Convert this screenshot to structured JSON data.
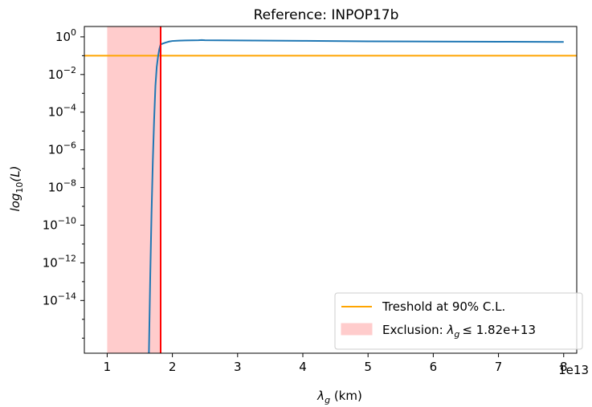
{
  "chart_data": {
    "type": "line",
    "title": "Reference: INPOP17b",
    "xlabel_symbol": "λ",
    "xlabel_sub": "g",
    "xlabel_unit": " (km)",
    "ylabel_prefix": "log",
    "ylabel_sub": "10",
    "ylabel_suffix": "(L)",
    "x_offset_label": "1e13",
    "xlim": [
      0.65,
      8.2
    ],
    "ylim_log10": [
      -16.8,
      0.55
    ],
    "y_scale": "log",
    "x_ticks": [
      1,
      2,
      3,
      4,
      5,
      6,
      7,
      8
    ],
    "x_tick_labels": [
      "1",
      "2",
      "3",
      "4",
      "5",
      "6",
      "7",
      "8"
    ],
    "y_ticks_exp": [
      0,
      -2,
      -4,
      -6,
      -8,
      -10,
      -12,
      -14
    ],
    "y_tick_labels": [
      "0",
      "−2",
      "−4",
      "−6",
      "−8",
      "−10",
      "−12",
      "−14"
    ],
    "y_tick_base": "10",
    "grid": false,
    "legend_position": "bottom-right",
    "series": [
      {
        "color": "#1f77b4",
        "x": [
          1.64,
          1.66,
          1.68,
          1.7,
          1.72,
          1.74,
          1.76,
          1.78,
          1.8,
          1.82,
          1.86,
          1.9,
          1.95,
          2.0,
          2.1,
          2.2,
          2.4,
          2.45,
          2.5,
          3.0,
          4.0,
          5.0,
          6.0,
          7.0,
          8.0
        ],
        "log10_y": [
          -16.8,
          -12.8,
          -9.4,
          -6.6,
          -4.4,
          -2.6,
          -1.6,
          -1.05,
          -0.65,
          -0.4,
          -0.35,
          -0.3,
          -0.25,
          -0.22,
          -0.2,
          -0.19,
          -0.18,
          -0.17,
          -0.18,
          -0.19,
          -0.21,
          -0.24,
          -0.25,
          -0.26,
          -0.27
        ]
      }
    ],
    "threshold": {
      "label": "Treshold at 90% C.L.",
      "log10_y": -1.0,
      "color": "#ffa500"
    },
    "exclusion": {
      "label_prefix": "Exclusion: ",
      "label_symbol": "λ",
      "label_sub": "g",
      "label_suffix": "≤  1.82e+13",
      "x_start": 1.0,
      "x_end": 1.82,
      "fill_color": "#ffcccc",
      "line_color": "#ff0000"
    }
  }
}
